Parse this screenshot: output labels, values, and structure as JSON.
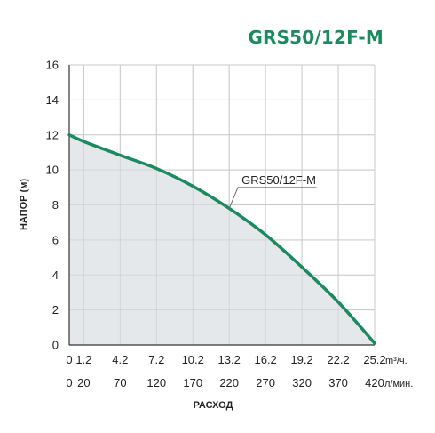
{
  "colors": {
    "accent": "#1a8a5f",
    "fill": "#dfe4e6",
    "grid": "#c9c9c9",
    "axis": "#333333",
    "text": "#222222",
    "leader": "#666666"
  },
  "chart_data": {
    "type": "area",
    "title": "GRS50/12F-M",
    "ylabel": "НАПОР (м)",
    "xlabel": "РАСХОД",
    "ylim": [
      0,
      16
    ],
    "yticks": [
      0,
      2,
      4,
      6,
      8,
      10,
      12,
      14,
      16
    ],
    "x_unit_primary": "m³/ч.",
    "x_unit_secondary": "л/мин.",
    "x_ticks_primary": [
      "0",
      "1.2",
      "4.2",
      "7.2",
      "10.2",
      "13.2",
      "16.2",
      "19.2",
      "22.2",
      "25.2"
    ],
    "x_ticks_secondary": [
      "0",
      "20",
      "70",
      "120",
      "170",
      "220",
      "270",
      "320",
      "370",
      "420"
    ],
    "x_ticks_lmin": [
      0,
      20,
      70,
      120,
      170,
      220,
      270,
      320,
      370,
      420
    ],
    "xlim_lmin": [
      0,
      420
    ],
    "grid": true,
    "series": [
      {
        "name": "GRS50/12F-M",
        "x": [
          0,
          20,
          70,
          120,
          170,
          220,
          270,
          320,
          370,
          420
        ],
        "y": [
          12.0,
          11.62,
          10.84,
          10.08,
          9.07,
          7.8,
          6.3,
          4.45,
          2.45,
          0.1
        ]
      }
    ]
  }
}
